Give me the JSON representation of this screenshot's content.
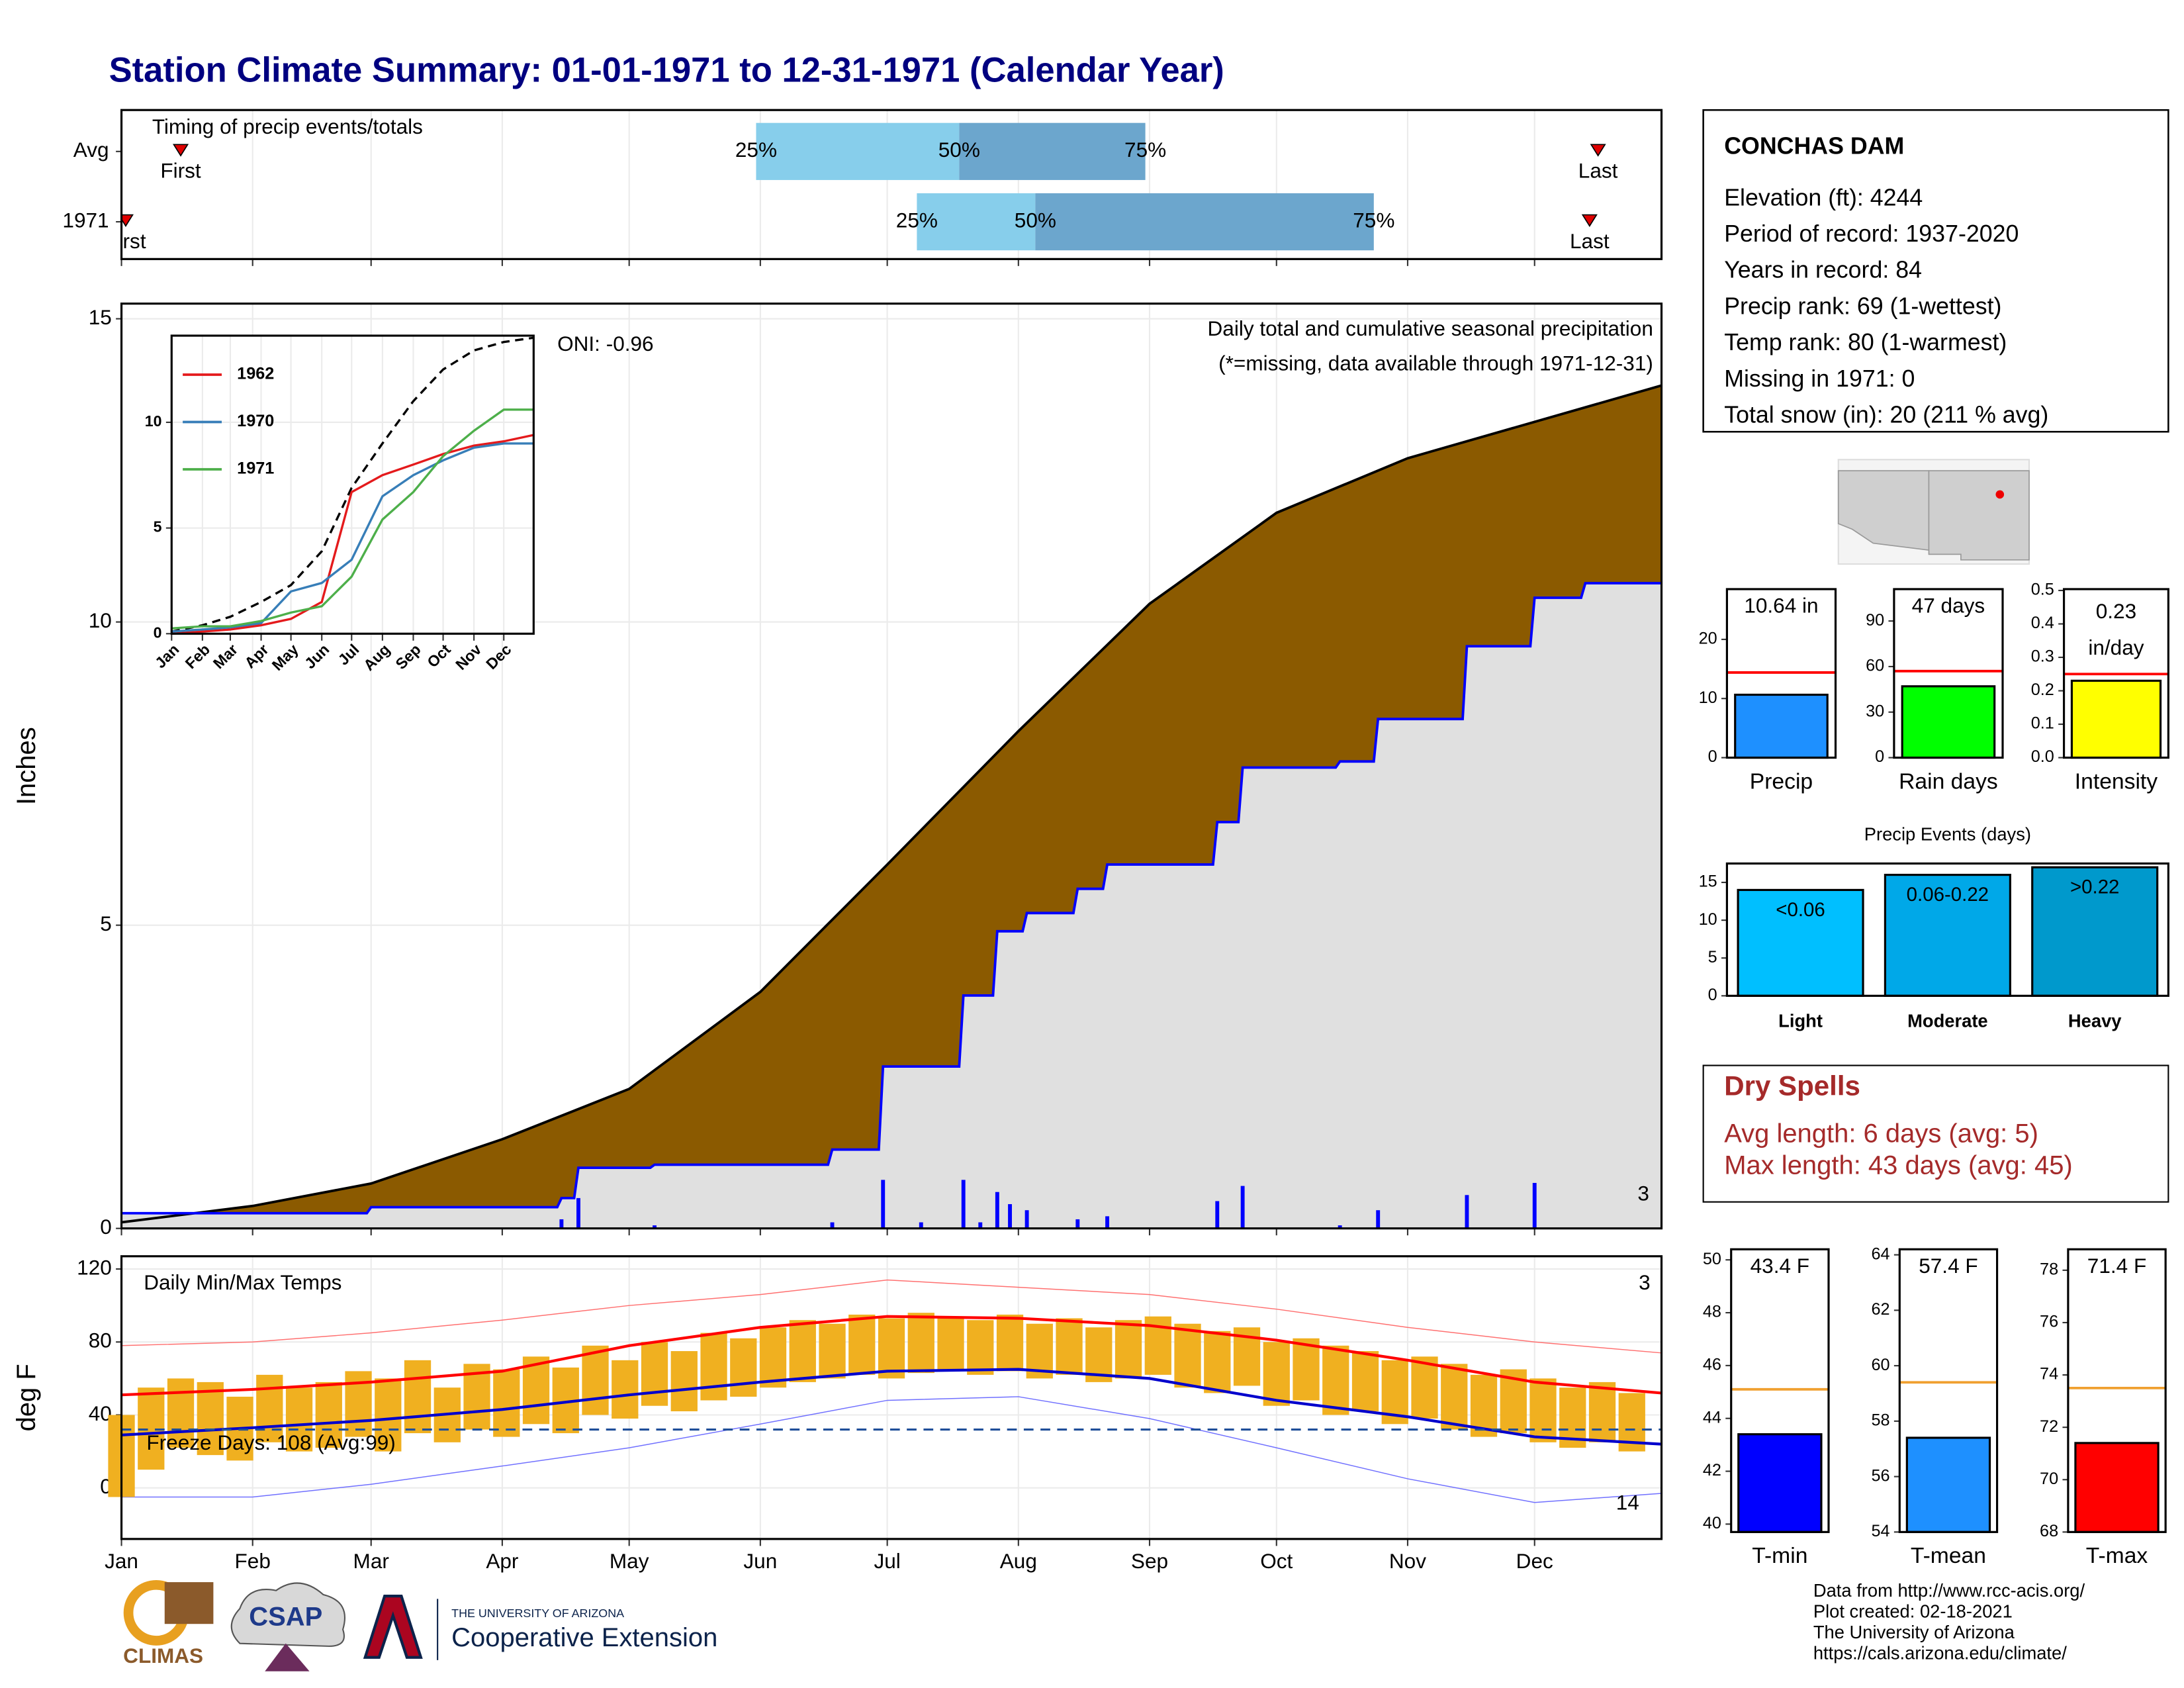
{
  "title": "Station Climate Summary: 01-01-1971 to 12-31-1971 (Calendar Year)",
  "station": {
    "name": "CONCHAS DAM",
    "lines": [
      "Elevation (ft): 4244",
      "Period of record: 1937-2020",
      "Years in record: 84",
      "Precip rank: 69 (1-wettest)",
      "Temp rank: 80 (1-warmest)",
      "Missing in 1971: 0",
      "Total snow (in): 20 (211 % avg)"
    ]
  },
  "dry_spells": {
    "title": "Dry Spells",
    "lines": [
      "Avg length: 6 days (avg: 5)",
      "Max length: 43 days (avg: 45)"
    ]
  },
  "footer": {
    "lines": [
      "Data from http://www.rcc-acis.org/",
      "Plot created: 02-18-2021",
      "The University of Arizona",
      "https://cals.arizona.edu/climate/"
    ]
  },
  "logos": {
    "climas": "CLIMAS",
    "csap": "CSAP",
    "university": "THE UNIVERSITY OF ARIZONA",
    "extension": "Cooperative Extension"
  },
  "chart_data": [
    {
      "type": "timeline",
      "title": "Timing of precip events/totals",
      "xlim": [
        1,
        365
      ],
      "xticks": [
        1,
        32,
        60,
        91,
        121,
        152,
        182,
        213,
        244,
        274,
        305,
        335
      ],
      "grid": true,
      "colors": [
        "#87CEEB",
        "#6CA6CD"
      ],
      "marker_color": "#E00000",
      "quantile_labels": [
        "25%",
        "50%",
        "75%"
      ],
      "first_label": "First",
      "last_label": "Last",
      "rows": [
        {
          "name": "Avg",
          "first": 15,
          "q25": 151,
          "q50": 199,
          "q75": 243,
          "last": 350
        },
        {
          "name": "1971",
          "first": 2,
          "q25": 189,
          "q50": 217,
          "q75": 297,
          "last": 348
        }
      ]
    },
    {
      "type": "area",
      "y_label": "Inches",
      "xlim": [
        1,
        365
      ],
      "ylim": [
        0,
        15.25
      ],
      "xticks": [
        1,
        32,
        60,
        91,
        121,
        152,
        182,
        213,
        244,
        274,
        305,
        335
      ],
      "yticks": [
        0,
        5,
        10,
        15
      ],
      "grid": true,
      "annotations": [
        {
          "text": "Daily total and cumulative seasonal precipitation",
          "color": "#000000"
        },
        {
          "text": "(*=missing, data available through 1971-12-31)",
          "color": "#FF0000"
        },
        {
          "text": "ONI: -0.96",
          "color": "#000000"
        },
        {
          "text": "3",
          "color": "#FFA500"
        }
      ],
      "series": [
        {
          "color": "#000000",
          "fill": "#8B5A00",
          "x": [
            1,
            32,
            60,
            91,
            121,
            152,
            182,
            213,
            244,
            274,
            305,
            335,
            365
          ],
          "values": [
            0.1,
            0.37,
            0.74,
            1.47,
            2.3,
            3.9,
            6.0,
            8.2,
            10.3,
            11.8,
            12.7,
            13.3,
            13.9
          ]
        },
        {
          "color": "#0000FF",
          "fill": "#E0E0E0",
          "x": [
            1,
            59,
            60,
            104,
            105,
            108,
            109,
            126,
            127,
            168,
            169,
            180,
            181,
            199,
            200,
            207,
            208,
            214,
            215,
            226,
            227,
            233,
            234,
            259,
            260,
            265,
            266,
            288,
            289,
            297,
            298,
            318,
            319,
            334,
            335,
            346,
            347,
            365
          ],
          "values": [
            0.25,
            0.25,
            0.35,
            0.35,
            0.5,
            0.5,
            1.0,
            1.0,
            1.05,
            1.05,
            1.3,
            1.3,
            2.67,
            2.67,
            3.84,
            3.84,
            4.9,
            4.9,
            5.2,
            5.2,
            5.6,
            5.6,
            6.0,
            6.0,
            6.7,
            6.7,
            7.6,
            7.6,
            7.7,
            7.7,
            8.4,
            8.4,
            9.6,
            9.6,
            10.4,
            10.4,
            10.64,
            10.64
          ]
        }
      ],
      "bars": {
        "color": "#0000FF",
        "x": [
          105,
          109,
          127,
          169,
          181,
          190,
          200,
          204,
          208,
          211,
          215,
          227,
          234,
          260,
          266,
          289,
          298,
          319,
          335
        ],
        "values": [
          0.15,
          0.5,
          0.05,
          0.1,
          0.8,
          0.1,
          0.8,
          0.1,
          0.6,
          0.4,
          0.3,
          0.15,
          0.2,
          0.45,
          0.7,
          0.05,
          0.3,
          0.55,
          0.75
        ]
      }
    },
    {
      "type": "line",
      "xlim": [
        1,
        365
      ],
      "ylim": [
        0,
        14.1
      ],
      "grid": true,
      "xticks": [
        {
          "value": 1,
          "label": "Jan"
        },
        {
          "value": 32,
          "label": "Feb"
        },
        {
          "value": 60,
          "label": "Mar"
        },
        {
          "value": 91,
          "label": "Apr"
        },
        {
          "value": 121,
          "label": "May"
        },
        {
          "value": 152,
          "label": "Jun"
        },
        {
          "value": 182,
          "label": "Jul"
        },
        {
          "value": 213,
          "label": "Aug"
        },
        {
          "value": 244,
          "label": "Sep"
        },
        {
          "value": 274,
          "label": "Oct"
        },
        {
          "value": 305,
          "label": "Nov"
        },
        {
          "value": 335,
          "label": "Dec"
        }
      ],
      "yticks": [
        0,
        5,
        10
      ],
      "x": [
        1,
        32,
        60,
        91,
        121,
        152,
        182,
        213,
        244,
        274,
        305,
        335,
        365
      ],
      "series": [
        {
          "color": "#000000",
          "dash": true,
          "values": [
            0.1,
            0.4,
            0.8,
            1.5,
            2.3,
            3.9,
            6.9,
            9.0,
            11.0,
            12.5,
            13.4,
            13.8,
            14.0
          ]
        },
        {
          "name": "1962",
          "color": "#E41A1C",
          "values": [
            0,
            0.1,
            0.2,
            0.4,
            0.7,
            1.5,
            6.7,
            7.5,
            8.0,
            8.5,
            8.9,
            9.1,
            9.4
          ]
        },
        {
          "name": "1970",
          "color": "#377EB8",
          "values": [
            0.1,
            0.2,
            0.3,
            0.5,
            2.0,
            2.4,
            3.5,
            6.5,
            7.5,
            8.2,
            8.8,
            9.0,
            9.0
          ]
        },
        {
          "name": "1971",
          "color": "#4DAF4A",
          "values": [
            0.25,
            0.35,
            0.35,
            0.6,
            1.0,
            1.3,
            2.7,
            5.4,
            6.7,
            8.4,
            9.6,
            10.6,
            10.6
          ]
        }
      ]
    },
    {
      "type": "range",
      "title": "Daily Min/Max Temps",
      "y_label": "deg F",
      "xlim": [
        1,
        365
      ],
      "ylim": [
        -28,
        127
      ],
      "grid": true,
      "xticks": [
        {
          "value": 1,
          "label": "Jan"
        },
        {
          "value": 32,
          "label": "Feb"
        },
        {
          "value": 60,
          "label": "Mar"
        },
        {
          "value": 91,
          "label": "Apr"
        },
        {
          "value": 121,
          "label": "May"
        },
        {
          "value": 152,
          "label": "Jun"
        },
        {
          "value": 182,
          "label": "Jul"
        },
        {
          "value": 213,
          "label": "Aug"
        },
        {
          "value": 244,
          "label": "Sep"
        },
        {
          "value": 274,
          "label": "Oct"
        },
        {
          "value": 305,
          "label": "Nov"
        },
        {
          "value": 335,
          "label": "Dec"
        }
      ],
      "yticks": [
        0,
        40,
        80,
        120
      ],
      "freeze_line": 32,
      "freeze_color": "#1F4E99",
      "annotations": [
        {
          "text": "Freeze Days: 108 (Avg:99)",
          "color": "#1F4E99"
        },
        {
          "text": "3",
          "color": "#FF0000"
        },
        {
          "text": "14",
          "color": "#0000FF"
        }
      ],
      "x": [
        1,
        32,
        60,
        91,
        121,
        152,
        182,
        213,
        244,
        274,
        305,
        335,
        365
      ],
      "series": [
        {
          "color": "#FF7070",
          "width": 0.7,
          "values": [
            78,
            80,
            85,
            92,
            100,
            106,
            114,
            110,
            106,
            98,
            88,
            80,
            74
          ]
        },
        {
          "color": "#7070FF",
          "width": 0.7,
          "values": [
            -5,
            -5,
            2,
            12,
            22,
            35,
            48,
            50,
            38,
            22,
            5,
            -8,
            -3
          ]
        },
        {
          "color": "#FF0000",
          "width": 2,
          "values": [
            51,
            54,
            58,
            64,
            78,
            88,
            94,
            93,
            89,
            81,
            70,
            58,
            52
          ]
        },
        {
          "color": "#0000CC",
          "width": 2,
          "values": [
            29,
            33,
            37,
            43,
            51,
            58,
            64,
            65,
            60,
            48,
            39,
            28,
            24
          ]
        }
      ],
      "bars": {
        "color": "#F0B020",
        "x": [
          1,
          8,
          15,
          22,
          29,
          36,
          43,
          50,
          57,
          64,
          71,
          78,
          85,
          92,
          99,
          106,
          113,
          120,
          127,
          134,
          141,
          148,
          155,
          162,
          169,
          176,
          183,
          190,
          197,
          204,
          211,
          218,
          225,
          232,
          239,
          246,
          253,
          260,
          267,
          274,
          281,
          288,
          295,
          302,
          309,
          316,
          323,
          330,
          337,
          344,
          351,
          358
        ],
        "max": [
          40,
          55,
          60,
          58,
          50,
          62,
          55,
          58,
          64,
          60,
          70,
          55,
          68,
          65,
          72,
          66,
          78,
          70,
          80,
          75,
          85,
          82,
          88,
          92,
          90,
          95,
          93,
          96,
          94,
          92,
          95,
          90,
          93,
          88,
          92,
          94,
          90,
          86,
          88,
          80,
          82,
          78,
          75,
          70,
          72,
          68,
          62,
          65,
          60,
          55,
          58,
          52
        ],
        "min": [
          -5,
          10,
          22,
          18,
          15,
          25,
          20,
          22,
          28,
          20,
          30,
          25,
          32,
          28,
          35,
          30,
          40,
          38,
          45,
          42,
          48,
          50,
          55,
          58,
          60,
          62,
          60,
          63,
          65,
          62,
          64,
          60,
          62,
          58,
          60,
          62,
          55,
          52,
          56,
          45,
          48,
          40,
          42,
          35,
          38,
          32,
          28,
          30,
          25,
          22,
          25,
          20
        ]
      }
    },
    {
      "type": "bar",
      "categories": [
        "Precip"
      ],
      "values": [
        10.64
      ],
      "value_label_lines": [
        "10.64 in"
      ],
      "color": "#1E90FF",
      "average": 14.4,
      "average_color": "#FF0000",
      "ylim": [
        0,
        28.5
      ],
      "yticks": [
        0,
        10,
        20
      ]
    },
    {
      "type": "bar",
      "categories": [
        "Rain days"
      ],
      "values": [
        47
      ],
      "value_label_lines": [
        "47 days"
      ],
      "color": "#00FF00",
      "average": 57,
      "average_color": "#FF0000",
      "ylim": [
        0,
        111
      ],
      "yticks": [
        0,
        30,
        60,
        90
      ]
    },
    {
      "type": "bar",
      "categories": [
        "Intensity"
      ],
      "values": [
        0.23
      ],
      "value_label_lines": [
        "0.23",
        "in/day"
      ],
      "color": "#FFFF00",
      "average": 0.25,
      "average_color": "#FF0000",
      "ylim": [
        0,
        0.504
      ],
      "yticks": [
        {
          "value": 0,
          "label": "0.0"
        },
        0.1,
        0.2,
        0.3,
        0.4,
        0.5
      ]
    },
    {
      "type": "bar",
      "title": "Precip Events (days)",
      "categories": [
        "Light",
        "Moderate",
        "Heavy"
      ],
      "values": [
        14,
        16,
        17
      ],
      "bar_labels": [
        "<0.06",
        "0.06-0.22",
        ">0.22"
      ],
      "colors": [
        "#00BFFF",
        "#00A8E8",
        "#0099CC"
      ],
      "ylim": [
        0,
        17.5
      ],
      "yticks": [
        0,
        5,
        10,
        15
      ]
    },
    {
      "type": "bar",
      "categories": [
        "T-min"
      ],
      "values": [
        43.4
      ],
      "value_label_lines": [
        "43.4 F"
      ],
      "color": "#0000FF",
      "average": 45.1,
      "average_color": "#F0A030",
      "ylim": [
        39.7,
        50.4
      ],
      "yticks": [
        40,
        42,
        44,
        46,
        48,
        50
      ]
    },
    {
      "type": "bar",
      "categories": [
        "T-mean"
      ],
      "values": [
        57.4
      ],
      "value_label_lines": [
        "57.4 F"
      ],
      "color": "#1E90FF",
      "average": 59.4,
      "average_color": "#F0A030",
      "ylim": [
        54,
        64.2
      ],
      "yticks": [
        54,
        56,
        58,
        60,
        62,
        64
      ]
    },
    {
      "type": "bar",
      "categories": [
        "T-max"
      ],
      "values": [
        71.4
      ],
      "value_label_lines": [
        "71.4 F"
      ],
      "color": "#FF0000",
      "average": 73.5,
      "average_color": "#F0A030",
      "ylim": [
        68,
        78.8
      ],
      "yticks": [
        68,
        70,
        72,
        74,
        76,
        78
      ]
    }
  ]
}
